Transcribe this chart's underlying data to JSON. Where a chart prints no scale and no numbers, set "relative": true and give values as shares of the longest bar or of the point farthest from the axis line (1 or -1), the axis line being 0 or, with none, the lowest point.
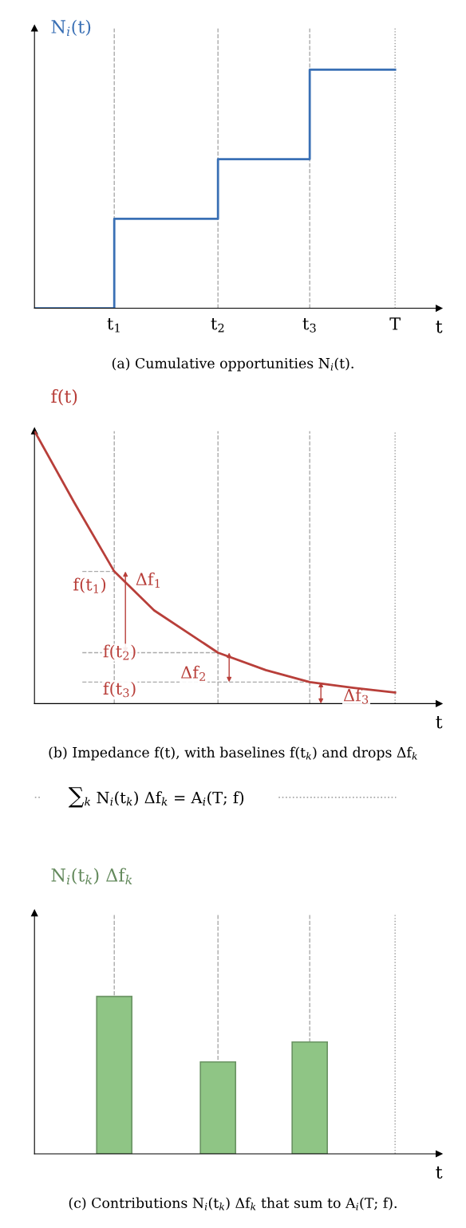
{
  "chart_data": [
    {
      "type": "step",
      "ylabel": "N$_{i}$(t)",
      "xlabel": "t",
      "title": "(a) Cumulative opportunities N$_{i}$(t).",
      "relative": true,
      "x": [
        0,
        1,
        2.3,
        3.45,
        4.52
      ],
      "series": [
        {
          "color": "#3a70b5",
          "values": [
            0,
            0.375,
            0.625,
            1.0,
            1.0
          ]
        }
      ],
      "xlim": [
        0,
        5.07
      ],
      "xticks": [
        {
          "value": 1,
          "label": "t$_{1}$"
        },
        {
          "value": 2.3,
          "label": "t$_{2}$"
        },
        {
          "value": 3.45,
          "label": "t$_{3}$"
        },
        {
          "value": 4.52,
          "label": "T"
        }
      ],
      "tick_labels": "x",
      "ref_lines": [
        {
          "axis": "x",
          "value": 1,
          "color": "#aaaaaa",
          "line_style": "dashed"
        },
        {
          "axis": "x",
          "value": 2.3,
          "color": "#aaaaaa",
          "line_style": "dashed"
        },
        {
          "axis": "x",
          "value": 3.45,
          "color": "#aaaaaa",
          "line_style": "dashed"
        },
        {
          "axis": "x",
          "value": 4.52,
          "color": "#999999",
          "line_style": "dotted"
        }
      ]
    },
    {
      "type": "line",
      "ylabel": "f(t)",
      "xlabel": "t",
      "title": "(b) Impedance f(t), with baselines f(t$_{k}$) and drops Δf$_{k}$",
      "relative": true,
      "tick_labels": false,
      "xlim": [
        0,
        5.07
      ],
      "series": [
        {
          "color": "#b83f3a",
          "x": [
            0,
            0.5,
            1,
            1.5,
            2.3,
            2.9,
            3.45,
            4.0,
            4.52
          ],
          "values": [
            1.0,
            0.737,
            0.485,
            0.342,
            0.187,
            0.123,
            0.079,
            0.058,
            0.041
          ]
        },
        {
          "type": "line",
          "line_style": "dashed",
          "color": "#aaaaaa",
          "x": [
            0.6,
            1
          ],
          "values": [
            0.485,
            0.485
          ]
        },
        {
          "type": "line",
          "line_style": "dashed",
          "color": "#aaaaaa",
          "x": [
            0.6,
            2.3
          ],
          "values": [
            0.187,
            0.187
          ]
        },
        {
          "type": "line",
          "line_style": "dashed",
          "color": "#aaaaaa",
          "x": [
            0.6,
            3.45
          ],
          "values": [
            0.079,
            0.079
          ]
        }
      ],
      "ref_lines": [
        {
          "axis": "x",
          "value": 1,
          "color": "#aaaaaa",
          "line_style": "dashed"
        },
        {
          "axis": "x",
          "value": 2.3,
          "color": "#aaaaaa",
          "line_style": "dashed"
        },
        {
          "axis": "x",
          "value": 3.45,
          "color": "#aaaaaa",
          "line_style": "dashed"
        },
        {
          "axis": "x",
          "value": 4.52,
          "color": "#999999",
          "line_style": "dotted"
        }
      ],
      "annotations": [
        {
          "text": "f(t$_{1}$)",
          "x": 1,
          "y": 0.485
        },
        {
          "text": "f(t$_{2}$)",
          "x": 1,
          "y": 0.187
        },
        {
          "text": "f(t$_{3}$)",
          "x": 1,
          "y": 0.079
        },
        {
          "text": "Δf$_{1}$",
          "x": 1.5,
          "y": 0.342
        },
        {
          "text": "Δf$_{2}$",
          "x": 2.3,
          "y": 0.187
        },
        {
          "text": "Δf$_{3}$",
          "x": 3.45,
          "y": 0.079
        },
        "∑$_{k}$ N$_{i}$(t$_{k}$) Δf$_{k}$ = A$_{i}$(T; f)"
      ]
    },
    {
      "type": "bar",
      "ylabel": "N$_{i}$(t$_{k}$) Δf$_{k}$",
      "xlabel": "t",
      "title": "(c) Contributions N$_{i}$(t$_{k}$) Δf$_{k}$ that sum to A$_{i}$(T; f).",
      "relative": true,
      "tick_labels": false,
      "xlim": [
        0,
        5.07
      ],
      "x": [
        1,
        2.3,
        3.45
      ],
      "series": [
        {
          "color": "#8fc585",
          "values": [
            1.0,
            0.584,
            0.711
          ]
        }
      ],
      "ref_lines": [
        {
          "axis": "x",
          "value": 1,
          "color": "#aaaaaa",
          "line_style": "dashed"
        },
        {
          "axis": "x",
          "value": 2.3,
          "color": "#aaaaaa",
          "line_style": "dashed"
        },
        {
          "axis": "x",
          "value": 3.45,
          "color": "#aaaaaa",
          "line_style": "dashed"
        },
        {
          "axis": "x",
          "value": 4.52,
          "color": "#999999",
          "line_style": "dotted"
        }
      ]
    }
  ]
}
